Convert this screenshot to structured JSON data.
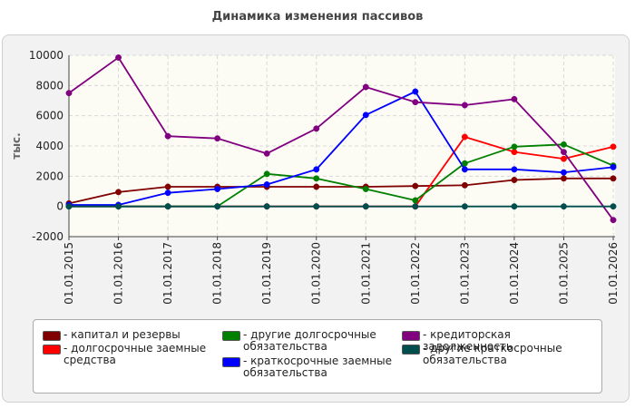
{
  "chart_data": {
    "type": "line",
    "title": "Динамика изменения пассивов",
    "ylabel": "тыс.",
    "xlabel": "",
    "ylim": [
      -2000,
      10000
    ],
    "yticks": [
      -2000,
      0,
      2000,
      4000,
      6000,
      8000,
      10000
    ],
    "grid": true,
    "legend_position": "bottom",
    "categories": [
      "01.01.2015",
      "01.01.2016",
      "01.01.2017",
      "01.01.2018",
      "01.01.2019",
      "01.01.2020",
      "01.01.2021",
      "01.01.2022",
      "01.01.2023",
      "01.01.2024",
      "01.01.2025",
      "01.01.2026"
    ],
    "series": [
      {
        "name": "капитал и резервы",
        "color": "#800000",
        "values": [
          200,
          950,
          1300,
          1300,
          1300,
          1300,
          1300,
          1350,
          1400,
          1750,
          1850,
          1850
        ]
      },
      {
        "name": "долгосрочные заемные средства",
        "color": "#ff0000",
        "values": [
          0,
          0,
          0,
          0,
          0,
          0,
          0,
          0,
          4600,
          3600,
          3150,
          3950
        ]
      },
      {
        "name": "другие долгосрочные обязательства",
        "color": "#008000",
        "values": [
          0,
          0,
          0,
          0,
          2150,
          1850,
          1150,
          400,
          2850,
          3950,
          4100,
          2700
        ]
      },
      {
        "name": "краткосрочные заемные обязательства",
        "color": "#0000ff",
        "values": [
          100,
          100,
          900,
          1150,
          1450,
          2450,
          6050,
          7600,
          2450,
          2450,
          2250,
          2600
        ]
      },
      {
        "name": "кредиторская задолженность",
        "color": "#800080",
        "values": [
          7500,
          9850,
          4650,
          4500,
          3500,
          5150,
          7900,
          6900,
          6700,
          7100,
          3600,
          -900
        ]
      },
      {
        "name": "другие краткосрочные обязательства",
        "color": "#004d4d",
        "values": [
          0,
          0,
          0,
          0,
          0,
          0,
          0,
          0,
          0,
          0,
          0,
          0
        ]
      }
    ]
  }
}
